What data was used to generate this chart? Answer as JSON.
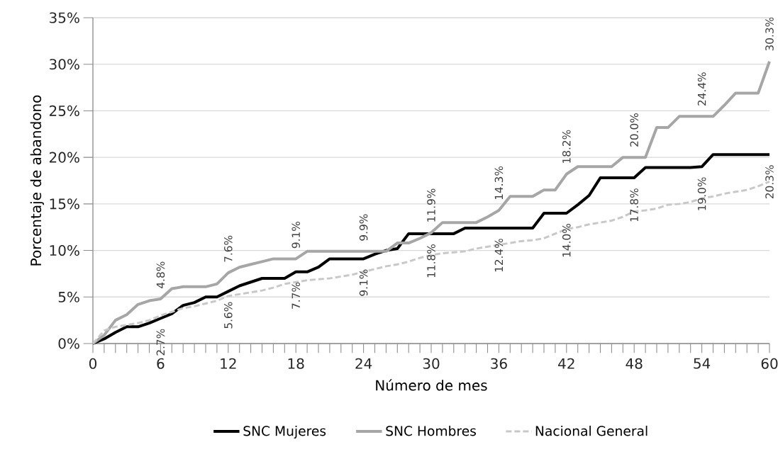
{
  "chart_data": {
    "type": "line",
    "xlabel": "Número de mes",
    "ylabel": "Porcentaje de abandono",
    "x": [
      0,
      1,
      2,
      3,
      4,
      5,
      6,
      7,
      8,
      9,
      10,
      11,
      12,
      13,
      14,
      15,
      16,
      17,
      18,
      19,
      20,
      21,
      22,
      23,
      24,
      25,
      26,
      27,
      28,
      29,
      30,
      31,
      32,
      33,
      34,
      35,
      36,
      37,
      38,
      39,
      40,
      41,
      42,
      43,
      44,
      45,
      46,
      47,
      48,
      49,
      50,
      51,
      52,
      53,
      54,
      55,
      56,
      57,
      58,
      59,
      60
    ],
    "xlim": [
      0,
      60
    ],
    "xticks": [
      {
        "value": 0,
        "label": "0"
      },
      {
        "value": 1,
        "label": null
      },
      {
        "value": 2,
        "label": null
      },
      {
        "value": 3,
        "label": null
      },
      {
        "value": 4,
        "label": null
      },
      {
        "value": 5,
        "label": null
      },
      {
        "value": 6,
        "label": "6"
      },
      {
        "value": 7,
        "label": null
      },
      {
        "value": 8,
        "label": null
      },
      {
        "value": 9,
        "label": null
      },
      {
        "value": 10,
        "label": null
      },
      {
        "value": 11,
        "label": null
      },
      {
        "value": 12,
        "label": "12"
      },
      {
        "value": 13,
        "label": null
      },
      {
        "value": 14,
        "label": null
      },
      {
        "value": 15,
        "label": null
      },
      {
        "value": 16,
        "label": null
      },
      {
        "value": 17,
        "label": null
      },
      {
        "value": 18,
        "label": "18"
      },
      {
        "value": 19,
        "label": null
      },
      {
        "value": 20,
        "label": null
      },
      {
        "value": 21,
        "label": null
      },
      {
        "value": 22,
        "label": null
      },
      {
        "value": 23,
        "label": null
      },
      {
        "value": 24,
        "label": "24"
      },
      {
        "value": 25,
        "label": null
      },
      {
        "value": 26,
        "label": null
      },
      {
        "value": 27,
        "label": null
      },
      {
        "value": 28,
        "label": null
      },
      {
        "value": 29,
        "label": null
      },
      {
        "value": 30,
        "label": "30"
      },
      {
        "value": 31,
        "label": null
      },
      {
        "value": 32,
        "label": null
      },
      {
        "value": 33,
        "label": null
      },
      {
        "value": 34,
        "label": null
      },
      {
        "value": 35,
        "label": null
      },
      {
        "value": 36,
        "label": "36"
      },
      {
        "value": 37,
        "label": null
      },
      {
        "value": 38,
        "label": null
      },
      {
        "value": 39,
        "label": null
      },
      {
        "value": 40,
        "label": null
      },
      {
        "value": 41,
        "label": null
      },
      {
        "value": 42,
        "label": "42"
      },
      {
        "value": 43,
        "label": null
      },
      {
        "value": 44,
        "label": null
      },
      {
        "value": 45,
        "label": null
      },
      {
        "value": 46,
        "label": null
      },
      {
        "value": 47,
        "label": null
      },
      {
        "value": 48,
        "label": "48"
      },
      {
        "value": 49,
        "label": null
      },
      {
        "value": 50,
        "label": null
      },
      {
        "value": 51,
        "label": null
      },
      {
        "value": 52,
        "label": null
      },
      {
        "value": 53,
        "label": null
      },
      {
        "value": 54,
        "label": "54"
      },
      {
        "value": 55,
        "label": null
      },
      {
        "value": 56,
        "label": null
      },
      {
        "value": 57,
        "label": null
      },
      {
        "value": 58,
        "label": null
      },
      {
        "value": 59,
        "label": null
      },
      {
        "value": 60,
        "label": "60"
      }
    ],
    "ylim": [
      0,
      35
    ],
    "yticks": [
      {
        "value": 0,
        "label": "0%"
      },
      {
        "value": 5,
        "label": "5%"
      },
      {
        "value": 10,
        "label": "10%"
      },
      {
        "value": 15,
        "label": "15%"
      },
      {
        "value": 20,
        "label": "20%"
      },
      {
        "value": 25,
        "label": "25%"
      },
      {
        "value": 30,
        "label": "30%"
      },
      {
        "value": 35,
        "label": "35%"
      }
    ],
    "grid": "y",
    "legend": "bottom",
    "series": [
      {
        "name": "SNC Mujeres",
        "color": "#000000",
        "line_style": "solid",
        "values": [
          0,
          0.5,
          1.2,
          1.8,
          1.8,
          2.2,
          2.7,
          3.2,
          4.1,
          4.4,
          5.0,
          5.0,
          5.6,
          6.2,
          6.6,
          7.0,
          7.0,
          7.0,
          7.7,
          7.7,
          8.2,
          9.1,
          9.1,
          9.1,
          9.1,
          9.6,
          10.0,
          10.2,
          11.8,
          11.8,
          11.8,
          11.8,
          11.8,
          12.4,
          12.4,
          12.4,
          12.4,
          12.4,
          12.4,
          12.4,
          14.0,
          14.0,
          14.0,
          14.9,
          15.9,
          17.8,
          17.8,
          17.8,
          17.8,
          18.9,
          18.9,
          18.9,
          18.9,
          18.9,
          19.0,
          20.3,
          20.3,
          20.3,
          20.3,
          20.3,
          20.3
        ],
        "value_labels": [
          null,
          null,
          null,
          null,
          null,
          null,
          "2.7%",
          null,
          null,
          null,
          null,
          null,
          "5.6%",
          null,
          null,
          null,
          null,
          null,
          "7.7%",
          null,
          null,
          null,
          null,
          null,
          "9.1%",
          null,
          null,
          null,
          null,
          null,
          "11.8%",
          null,
          null,
          null,
          null,
          null,
          "12.4%",
          null,
          null,
          null,
          null,
          null,
          "14.0%",
          null,
          null,
          null,
          null,
          null,
          "17.8%",
          null,
          null,
          null,
          null,
          null,
          "19.0%",
          null,
          null,
          null,
          null,
          null,
          "20.3%"
        ]
      },
      {
        "name": "SNC Hombres",
        "color": "#a6a6a6",
        "line_style": "solid",
        "values": [
          0,
          0.9,
          2.5,
          3.1,
          4.2,
          4.6,
          4.8,
          5.9,
          6.1,
          6.1,
          6.1,
          6.4,
          7.6,
          8.2,
          8.5,
          8.8,
          9.1,
          9.1,
          9.1,
          9.9,
          9.9,
          9.9,
          9.9,
          9.9,
          9.9,
          9.9,
          9.9,
          10.8,
          10.8,
          11.3,
          11.9,
          13.0,
          13.0,
          13.0,
          13.0,
          13.6,
          14.3,
          15.8,
          15.8,
          15.8,
          16.5,
          16.5,
          18.2,
          19.0,
          19.0,
          19.0,
          19.0,
          20.0,
          20.0,
          20.0,
          23.2,
          23.2,
          24.4,
          24.4,
          24.4,
          24.4,
          25.6,
          26.9,
          26.9,
          26.9,
          30.3
        ],
        "value_labels": [
          null,
          null,
          null,
          null,
          null,
          null,
          "4.8%",
          null,
          null,
          null,
          null,
          null,
          "7.6%",
          null,
          null,
          null,
          null,
          null,
          "9.1%",
          null,
          null,
          null,
          null,
          null,
          "9.9%",
          null,
          null,
          null,
          null,
          null,
          "11.9%",
          null,
          null,
          null,
          null,
          null,
          "14.3%",
          null,
          null,
          null,
          null,
          null,
          "18.2%",
          null,
          null,
          null,
          null,
          null,
          "20.0%",
          null,
          null,
          null,
          null,
          null,
          "24.4%",
          null,
          null,
          null,
          null,
          null,
          "30.3%"
        ]
      },
      {
        "name": "Nacional General",
        "color": "#c8c8c8",
        "line_style": "dashed",
        "values": [
          0,
          1.4,
          1.8,
          2.0,
          2.2,
          2.5,
          3.0,
          3.4,
          3.8,
          4.0,
          4.3,
          4.6,
          5.1,
          5.3,
          5.5,
          5.7,
          6.0,
          6.4,
          6.6,
          6.8,
          6.9,
          7.0,
          7.2,
          7.4,
          7.7,
          8.0,
          8.3,
          8.5,
          8.8,
          9.2,
          9.5,
          9.7,
          9.8,
          9.9,
          10.2,
          10.4,
          10.6,
          10.8,
          11.0,
          11.1,
          11.3,
          11.8,
          12.3,
          12.5,
          12.8,
          13.0,
          13.2,
          13.6,
          14.2,
          14.3,
          14.5,
          14.9,
          15.0,
          15.2,
          15.6,
          15.8,
          16.1,
          16.3,
          16.5,
          16.9,
          17.4
        ]
      }
    ]
  }
}
